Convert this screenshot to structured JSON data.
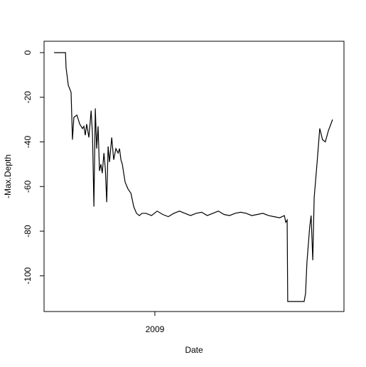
{
  "chart_data": {
    "type": "line",
    "x_label": "Date",
    "y_label": "-Max.Depth",
    "x": [
      0,
      4.1,
      4.3,
      5.1,
      6.1,
      6.6,
      7.1,
      8.2,
      9.2,
      10.2,
      10.7,
      11.2,
      11.7,
      12.5,
      13.3,
      13.8,
      14.3,
      14.8,
      15.3,
      15.8,
      16.3,
      16.8,
      17.3,
      17.9,
      18.4,
      18.9,
      19.4,
      19.9,
      20.7,
      21.4,
      22.2,
      23,
      23.5,
      24,
      24.5,
      25,
      25.5,
      26.5,
      27.6,
      28.6,
      29.6,
      30.6,
      31.6,
      33,
      35,
      37,
      39,
      41,
      43,
      45,
      47,
      49,
      51,
      53,
      55,
      57,
      59,
      61,
      63,
      65,
      67,
      69,
      71,
      73,
      75,
      77,
      79,
      81,
      82.7,
      83.2,
      83.7,
      83.9,
      89.8,
      90.3,
      90.8,
      91.3,
      91.8,
      92.3,
      92.9,
      93.4,
      94.4,
      95.4,
      96.4,
      97.4,
      98.5,
      100
    ],
    "series": [
      {
        "color": "#000000",
        "values": [
          0,
          0,
          -6.7,
          -14.6,
          -17.8,
          -39,
          -29,
          -28,
          -32,
          -34,
          -33,
          -37,
          -32,
          -38,
          -26,
          -37,
          -69,
          -25,
          -43,
          -33,
          -53,
          -50,
          -54,
          -45,
          -52,
          -67,
          -42,
          -49,
          -38,
          -48,
          -43,
          -45,
          -43,
          -48,
          -50,
          -54,
          -58,
          -61,
          -63,
          -69,
          -72,
          -73,
          -72,
          -72,
          -73,
          -71,
          -72.5,
          -73.5,
          -72,
          -71,
          -72,
          -73,
          -72,
          -71.5,
          -73,
          -72,
          -71,
          -72.5,
          -73,
          -72,
          -71.5,
          -72,
          -73,
          -72.5,
          -72,
          -73,
          -73.5,
          -74,
          -73,
          -76,
          -75,
          -111.5,
          -111.5,
          -108,
          -94,
          -86,
          -78,
          -73,
          -93,
          -65,
          -50,
          -34,
          -39,
          -40,
          -35,
          -30
        ]
      }
    ],
    "xlim": [
      -3.6,
      104.1
    ],
    "ylim": [
      -116,
      5.1
    ],
    "xticks": [
      {
        "value": 36.2,
        "label": "2009"
      }
    ],
    "yticks": [
      0,
      -20,
      -40,
      -60,
      -80,
      -100
    ]
  }
}
